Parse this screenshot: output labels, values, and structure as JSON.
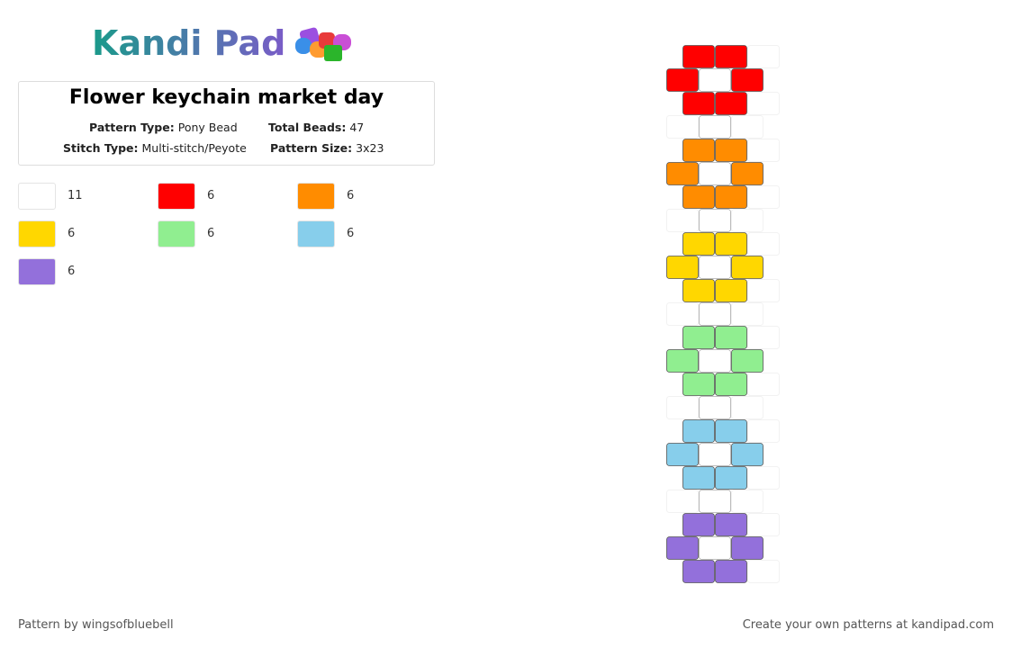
{
  "logo": "Kandi Pad",
  "title": "Flower keychain market day",
  "details": [
    {
      "label": "Pattern Type:",
      "value": "Pony Bead"
    },
    {
      "label": "Total Beads:",
      "value": 47
    },
    {
      "label": "Stitch Type:",
      "value": "Multi-stitch/Peyote"
    },
    {
      "label": "Pattern Size:",
      "value": "3x23"
    }
  ],
  "legend": [
    {
      "color": "#ffffff",
      "count": 11
    },
    {
      "color": "#ff0000",
      "count": 6
    },
    {
      "color": "#ff8c00",
      "count": 6
    },
    {
      "color": "#ffd700",
      "count": 6
    },
    {
      "color": "#90ee90",
      "count": 6
    },
    {
      "color": "#87ceeb",
      "count": 6
    },
    {
      "color": "#9370db",
      "count": 6
    }
  ],
  "pattern": {
    "rows": [
      [
        1,
        1,
        null
      ],
      [
        1,
        0,
        1
      ],
      [
        1,
        1,
        null
      ],
      [
        null,
        0,
        null
      ],
      [
        2,
        2,
        null
      ],
      [
        2,
        0,
        2
      ],
      [
        2,
        2,
        null
      ],
      [
        null,
        0,
        null
      ],
      [
        3,
        3,
        null
      ],
      [
        3,
        0,
        3
      ],
      [
        3,
        3,
        null
      ],
      [
        null,
        0,
        null
      ],
      [
        4,
        4,
        null
      ],
      [
        4,
        0,
        4
      ],
      [
        4,
        4,
        null
      ],
      [
        null,
        0,
        null
      ],
      [
        5,
        5,
        null
      ],
      [
        5,
        0,
        5
      ],
      [
        5,
        5,
        null
      ],
      [
        null,
        0,
        null
      ],
      [
        6,
        6,
        null
      ],
      [
        6,
        0,
        6
      ],
      [
        6,
        6,
        null
      ]
    ]
  },
  "footer": {
    "credit": "Pattern by wingsofbluebell",
    "promo": "Create your own patterns at kandipad.com"
  }
}
